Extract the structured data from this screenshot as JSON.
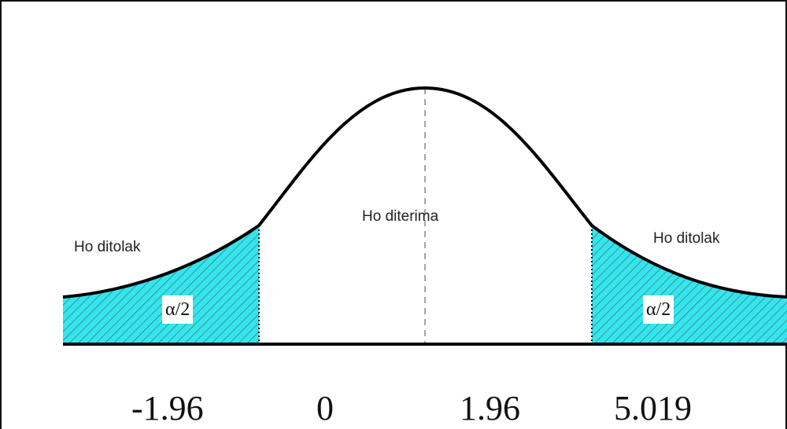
{
  "regions": {
    "left_reject": "Ho ditolak",
    "accept": "Ho diterima",
    "right_reject": "Ho ditolak"
  },
  "tails": {
    "left_label": "α/2",
    "right_label": "α/2",
    "fill_color": "#33e6ee",
    "hatch_color": "#555555"
  },
  "axis_labels": {
    "neg_critical": "-1.96",
    "center": "0",
    "pos_critical": "1.96",
    "test_stat": "5.019"
  }
}
